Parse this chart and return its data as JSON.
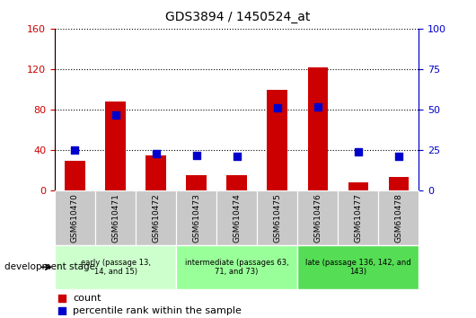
{
  "title": "GDS3894 / 1450524_at",
  "samples": [
    "GSM610470",
    "GSM610471",
    "GSM610472",
    "GSM610473",
    "GSM610474",
    "GSM610475",
    "GSM610476",
    "GSM610477",
    "GSM610478"
  ],
  "counts": [
    30,
    88,
    35,
    15,
    15,
    100,
    122,
    8,
    14
  ],
  "percentile_ranks": [
    25,
    47,
    23,
    22,
    21,
    51,
    52,
    24,
    21
  ],
  "ylim_left": [
    0,
    160
  ],
  "ylim_right": [
    0,
    100
  ],
  "yticks_left": [
    0,
    40,
    80,
    120,
    160
  ],
  "yticks_right": [
    0,
    25,
    50,
    75,
    100
  ],
  "groups": [
    {
      "label": "early (passage 13,\n14, and 15)",
      "start": 0,
      "end": 3,
      "color": "#ccffcc"
    },
    {
      "label": "intermediate (passages 63,\n71, and 73)",
      "start": 3,
      "end": 6,
      "color": "#99ff99"
    },
    {
      "label": "late (passage 136, 142, and\n143)",
      "start": 6,
      "end": 9,
      "color": "#55dd55"
    }
  ],
  "bar_color": "#cc0000",
  "dot_color": "#0000cc",
  "grid_color": "#000000",
  "left_axis_color": "#cc0000",
  "right_axis_color": "#0000cc",
  "legend_count_label": "count",
  "legend_percentile_label": "percentile rank within the sample",
  "dev_stage_label": "development stage",
  "sample_box_color": "#c8c8c8",
  "bar_width": 0.5
}
